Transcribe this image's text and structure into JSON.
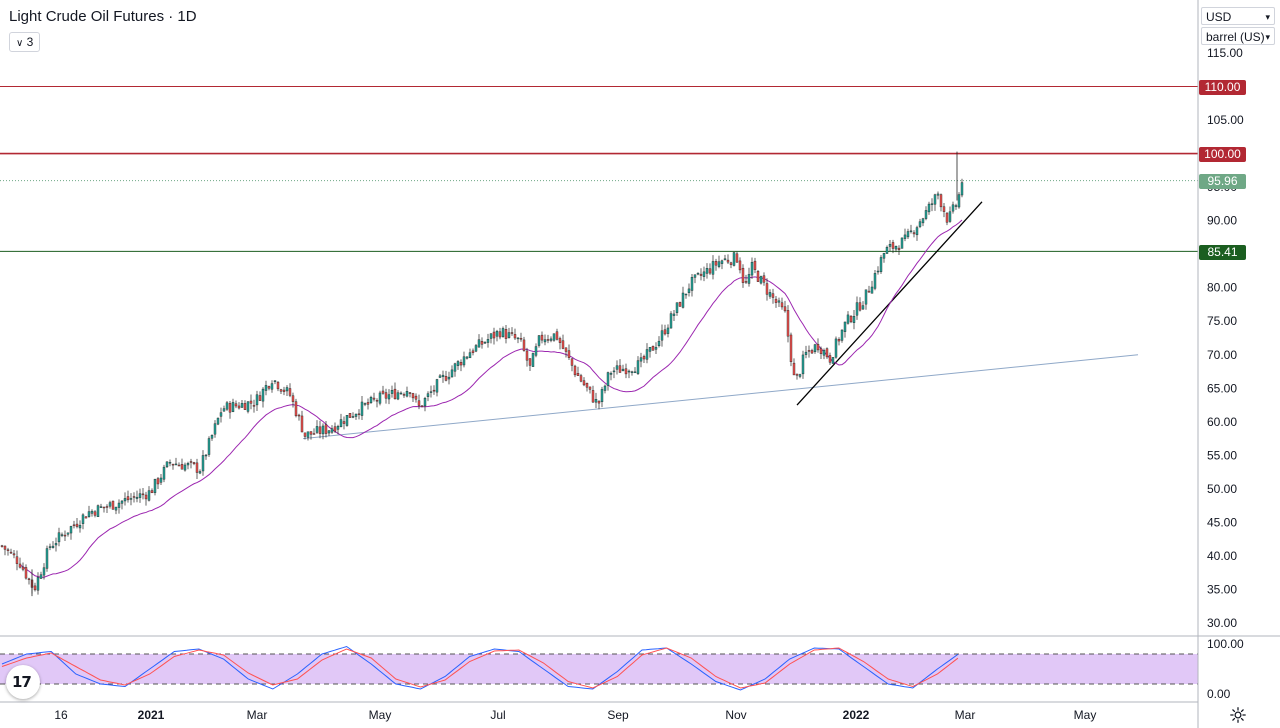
{
  "header": {
    "title": "Light Crude Oil Futures · 1D",
    "interval_button": "3"
  },
  "selectors": {
    "currency": "USD",
    "unit": "barrel (US)"
  },
  "price_tags": {
    "resistance_high": "110.00",
    "resistance": "100.00",
    "last_price": "95.96",
    "support": "85.41"
  },
  "colors": {
    "up": "#26a69a",
    "down": "#ef5350",
    "ma": "#9c27b0",
    "resistance": "#b22833",
    "support": "#1b5e20",
    "last_price": "#6fa886",
    "rsi_band": "#e1c8f7",
    "stoch_k": "#2962ff",
    "stoch_d": "#ff5252",
    "trendline_long": "#8fa8c8",
    "trendline_short": "#000000"
  },
  "chart_data": [
    {
      "type": "candlestick",
      "title": "Light Crude Oil Futures · 1D",
      "x_ticks": [
        "16",
        "2021",
        "Mar",
        "May",
        "Jul",
        "Sep",
        "Nov",
        "2022",
        "Mar",
        "May"
      ],
      "y_ticks": [
        "115.00",
        "110.00",
        "105.00",
        "100.00",
        "95.00",
        "90.00",
        "85.00",
        "80.00",
        "75.00",
        "70.00",
        "65.00",
        "60.00",
        "55.00",
        "50.00",
        "45.00",
        "40.00",
        "35.00",
        "30.00"
      ],
      "ylim": [
        29,
        118
      ],
      "grid": false,
      "closes_monthly_approx": [
        {
          "x": "Dec 2020",
          "close": 41.0
        },
        {
          "x": "Jan 2021",
          "close": 52.0
        },
        {
          "x": "Feb 2021",
          "close": 61.5
        },
        {
          "x": "Mar 2021",
          "close": 59.2
        },
        {
          "x": "Apr 2021",
          "close": 63.5
        },
        {
          "x": "May 2021",
          "close": 66.3
        },
        {
          "x": "Jun 2021",
          "close": 73.5
        },
        {
          "x": "Jul 2021",
          "close": 73.9
        },
        {
          "x": "Aug 2021",
          "close": 68.5
        },
        {
          "x": "Sep 2021",
          "close": 75.0
        },
        {
          "x": "Oct 2021",
          "close": 83.6
        },
        {
          "x": "Nov 2021",
          "close": 66.2
        },
        {
          "x": "Dec 2021",
          "close": 75.2
        },
        {
          "x": "Jan 2022",
          "close": 88.2
        },
        {
          "x": "Feb 2022",
          "close": 95.96
        }
      ],
      "period_high": 100.3,
      "period_low": 34.0,
      "last_price": 95.96,
      "horizontal_levels": [
        110.0,
        100.0,
        85.41
      ],
      "moving_average_label": "",
      "trendlines": [
        {
          "from": {
            "x": "Mar 2021",
            "y": 57.5
          },
          "to": {
            "x": "Apr 2022",
            "y": 70.0
          }
        },
        {
          "from": {
            "x": "Nov 2021",
            "y": 62.5
          },
          "to": {
            "x": "Feb 2022",
            "y": 92.8
          }
        }
      ]
    },
    {
      "type": "line",
      "title": "",
      "y_ticks": [
        "100.00",
        "0.00"
      ],
      "ylim": [
        -5,
        110
      ],
      "band": [
        20,
        80
      ],
      "series": [
        {
          "values_approx": [
            60,
            80,
            85,
            40,
            20,
            15,
            50,
            85,
            90,
            70,
            30,
            10,
            40,
            80,
            95,
            60,
            20,
            10,
            35,
            75,
            90,
            85,
            50,
            15,
            10,
            45,
            88,
            92,
            60,
            25,
            8,
            30,
            70,
            92,
            90,
            55,
            20,
            12,
            50,
            85
          ]
        },
        {
          "values_approx": [
            55,
            72,
            82,
            55,
            28,
            18,
            40,
            75,
            88,
            78,
            42,
            18,
            30,
            68,
            90,
            72,
            30,
            14,
            28,
            65,
            86,
            88,
            62,
            25,
            12,
            35,
            78,
            92,
            72,
            35,
            12,
            22,
            60,
            88,
            92,
            65,
            30,
            15,
            40,
            78
          ]
        }
      ]
    }
  ]
}
